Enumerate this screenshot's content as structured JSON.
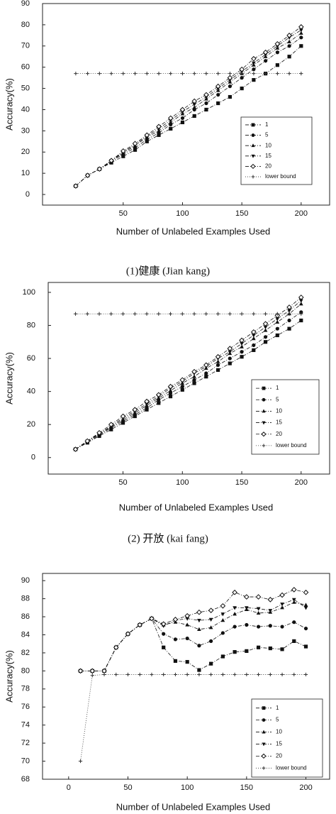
{
  "chart_data": [
    {
      "type": "line",
      "xlabel": "Number of Unlabeled Examples Used",
      "ylabel": "Accuracy(%)",
      "caption": "(1)健康 (Jian kang)",
      "x": [
        10,
        20,
        30,
        40,
        50,
        60,
        70,
        80,
        90,
        100,
        110,
        120,
        130,
        140,
        150,
        160,
        170,
        180,
        190,
        200
      ],
      "xlim": [
        -18,
        224
      ],
      "ylim": [
        -5,
        90
      ],
      "xticks": [
        50,
        100,
        150,
        200
      ],
      "yticks": [
        0,
        10,
        20,
        30,
        40,
        50,
        60,
        70,
        80,
        90
      ],
      "legend": "lower right",
      "series": [
        {
          "name": "1",
          "color": "#111111",
          "marker": "square",
          "linestyle": "dashdot",
          "values": [
            4,
            9,
            12,
            15,
            18,
            21,
            25,
            28,
            31,
            34,
            37,
            40,
            43,
            46,
            50,
            54,
            57,
            61,
            65,
            70
          ]
        },
        {
          "name": "5",
          "color": "#111111",
          "marker": "circle",
          "linestyle": "dashdot",
          "values": [
            4,
            9,
            12,
            15.5,
            19,
            22,
            26,
            29,
            33,
            36,
            40,
            43,
            47,
            51,
            55,
            59,
            63,
            67,
            70,
            74
          ]
        },
        {
          "name": "10",
          "color": "#111111",
          "marker": "triangle-up",
          "linestyle": "dashdot",
          "values": [
            4,
            9,
            12,
            16,
            19.5,
            23,
            27,
            30,
            34,
            38,
            41,
            45,
            49,
            53,
            57,
            61,
            65,
            69,
            72,
            76
          ]
        },
        {
          "name": "15",
          "color": "#111111",
          "marker": "triangle-down",
          "linestyle": "dashdot",
          "values": [
            4,
            9,
            12,
            16,
            20,
            23.5,
            27.5,
            31,
            35,
            39,
            42.5,
            46,
            50,
            54,
            58,
            62,
            66,
            70,
            74,
            77.5
          ]
        },
        {
          "name": "20",
          "color": "#111111",
          "marker": "diamond",
          "linestyle": "dashdot",
          "values": [
            4,
            9,
            12,
            16,
            20.5,
            24,
            28,
            32,
            36,
            40,
            44,
            47,
            51,
            55,
            59,
            64,
            67,
            71,
            75,
            79
          ]
        },
        {
          "name": "lower bound",
          "color": "#333333",
          "marker": "plus",
          "linestyle": "dotted",
          "values": [
            57,
            57,
            57,
            57,
            57,
            57,
            57,
            57,
            57,
            57,
            57,
            57,
            57,
            57,
            57,
            57,
            57,
            57,
            57,
            57
          ]
        }
      ]
    },
    {
      "type": "line",
      "xlabel": "Number of Unlabeled Examples Used",
      "ylabel": "Accuracy(%)",
      "caption": "(2) 开放 (kai fang)",
      "x": [
        10,
        20,
        30,
        40,
        50,
        60,
        70,
        80,
        90,
        100,
        110,
        120,
        130,
        140,
        150,
        160,
        170,
        180,
        190,
        200
      ],
      "xlim": [
        -13,
        224
      ],
      "ylim": [
        -10,
        106
      ],
      "xticks": [
        50,
        100,
        150,
        200
      ],
      "yticks": [
        0,
        20,
        40,
        60,
        80,
        100
      ],
      "legend": "lower right",
      "series": [
        {
          "name": "1",
          "color": "#111111",
          "marker": "square",
          "linestyle": "dashdot",
          "values": [
            5,
            9,
            13,
            17,
            21,
            25,
            29,
            33,
            37,
            41,
            45,
            49,
            53,
            57,
            61,
            65,
            70,
            74,
            78,
            83
          ]
        },
        {
          "name": "5",
          "color": "#111111",
          "marker": "circle",
          "linestyle": "dashdot",
          "values": [
            5,
            9.5,
            13.5,
            18,
            22,
            26,
            30,
            35,
            39,
            43,
            47,
            51,
            56,
            60,
            64,
            68,
            73,
            78,
            83,
            88
          ]
        },
        {
          "name": "10",
          "color": "#111111",
          "marker": "triangle-up",
          "linestyle": "dashdot",
          "values": [
            5,
            10,
            14,
            18.5,
            23,
            27,
            31.5,
            36,
            40.5,
            45,
            49,
            54,
            58,
            63,
            67,
            72,
            77,
            82,
            87,
            93
          ]
        },
        {
          "name": "15",
          "color": "#111111",
          "marker": "triangle-down",
          "linestyle": "dashdot",
          "values": [
            5,
            10,
            14.5,
            19,
            24,
            28,
            32.5,
            37,
            42,
            46,
            51,
            55,
            60,
            64,
            69,
            74,
            79,
            84,
            89,
            95
          ]
        },
        {
          "name": "20",
          "color": "#111111",
          "marker": "diamond",
          "linestyle": "dashdot",
          "values": [
            5,
            10,
            15,
            20,
            25,
            29,
            34,
            38,
            43,
            47,
            52,
            56,
            61,
            66,
            71,
            76,
            81,
            86,
            91,
            97
          ]
        },
        {
          "name": "lower bound",
          "color": "#333333",
          "marker": "plus",
          "linestyle": "dotted",
          "values": [
            87,
            87,
            87,
            87,
            87,
            87,
            87,
            87,
            87,
            87,
            87,
            87,
            87,
            87,
            87,
            87,
            87,
            87,
            87,
            87
          ]
        }
      ]
    },
    {
      "type": "line",
      "xlabel": "Number of Unlabeled Examples Used",
      "ylabel": "Accuracy(%)",
      "x": [
        10,
        20,
        30,
        40,
        50,
        60,
        70,
        80,
        90,
        100,
        110,
        120,
        130,
        140,
        150,
        160,
        170,
        180,
        190,
        200
      ],
      "xlim": [
        -22,
        220
      ],
      "ylim": [
        68,
        90.8
      ],
      "xticks": [
        0,
        50,
        100,
        150,
        200
      ],
      "yticks": [
        68,
        70,
        72,
        74,
        76,
        78,
        80,
        82,
        84,
        86,
        88,
        90
      ],
      "legend": "lower right",
      "series": [
        {
          "name": "1",
          "color": "#111111",
          "marker": "square",
          "linestyle": "dashdot",
          "values": [
            80,
            80,
            80,
            82.6,
            84.1,
            85.1,
            85.8,
            82.6,
            81.1,
            81,
            80.1,
            80.8,
            81.6,
            82.1,
            82.2,
            82.6,
            82.5,
            82.4,
            83.3,
            82.7
          ]
        },
        {
          "name": "5",
          "color": "#111111",
          "marker": "circle",
          "linestyle": "dashdot",
          "values": [
            80,
            80,
            80,
            82.6,
            84.1,
            85.1,
            85.8,
            84.1,
            83.5,
            83.6,
            82.8,
            83.3,
            84.2,
            84.9,
            85.1,
            84.9,
            85,
            84.9,
            85.4,
            84.7
          ]
        },
        {
          "name": "10",
          "color": "#111111",
          "marker": "triangle-up",
          "linestyle": "dashdot",
          "values": [
            80,
            80,
            80,
            82.6,
            84.1,
            85.1,
            85.8,
            85.1,
            85.4,
            85.1,
            84.6,
            84.8,
            85.6,
            86.3,
            86.8,
            86.4,
            86.5,
            87,
            87.6,
            87.3
          ]
        },
        {
          "name": "15",
          "color": "#111111",
          "marker": "triangle-down",
          "linestyle": "dashdot",
          "values": [
            80,
            80,
            80,
            82.6,
            84.1,
            85.1,
            85.8,
            85,
            85.6,
            85.8,
            85.6,
            85.7,
            86.3,
            87,
            87,
            86.9,
            86.7,
            87.4,
            87.9,
            87
          ]
        },
        {
          "name": "20",
          "color": "#111111",
          "marker": "diamond",
          "linestyle": "dashdot",
          "values": [
            80,
            80,
            80,
            82.6,
            84.1,
            85.1,
            85.8,
            85.2,
            85.7,
            86.1,
            86.5,
            86.7,
            87.2,
            88.7,
            88.2,
            88.2,
            87.9,
            88.4,
            89,
            88.7
          ]
        },
        {
          "name": "lower bound",
          "color": "#333333",
          "marker": "plus",
          "linestyle": "dotted",
          "values": [
            70,
            79.5,
            79.6,
            79.6,
            79.6,
            79.6,
            79.6,
            79.6,
            79.6,
            79.6,
            79.6,
            79.6,
            79.6,
            79.6,
            79.6,
            79.6,
            79.6,
            79.6,
            79.6,
            79.6
          ]
        }
      ]
    }
  ]
}
